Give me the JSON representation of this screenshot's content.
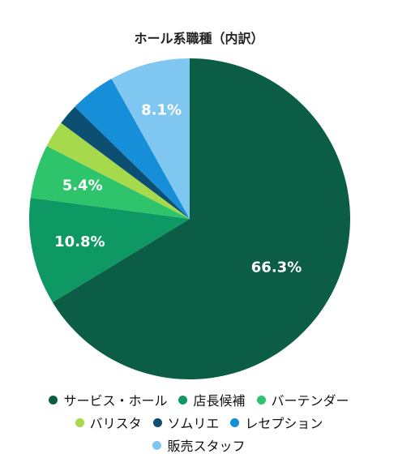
{
  "chart_data": {
    "type": "pie",
    "title": "ホール系職種（内訳）",
    "categories": [
      "サービス・ホール",
      "店長候補",
      "バーテンダー",
      "バリスタ",
      "ソムリエ",
      "レセプション",
      "販売スタッフ"
    ],
    "values": [
      66.3,
      10.8,
      5.4,
      2.7,
      2.1,
      4.6,
      8.1
    ],
    "labels": [
      "66.3%",
      "10.8%",
      "5.4%",
      "",
      "",
      "",
      "8.1%"
    ],
    "colors": [
      "#0b5e45",
      "#0e9964",
      "#2ec46b",
      "#a6d94c",
      "#0d4f73",
      "#178ed8",
      "#7fc6f0"
    ],
    "start_angle_deg": 0,
    "direction": "clockwise",
    "legend": "bottom",
    "legend_rows": [
      [
        0,
        1,
        2
      ],
      [
        3,
        4,
        5
      ],
      [
        6
      ]
    ]
  }
}
